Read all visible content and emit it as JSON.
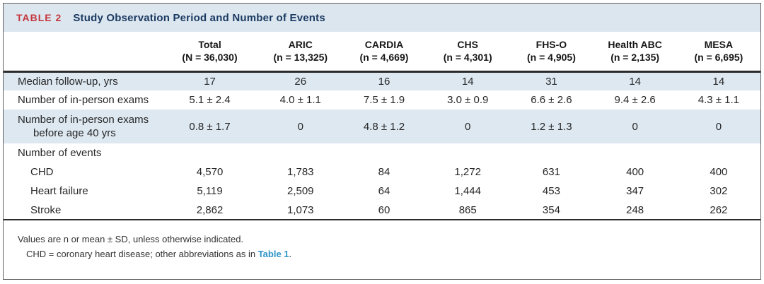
{
  "table": {
    "tag": "TABLE 2",
    "title": "Study Observation Period and Number of Events"
  },
  "columns": [
    {
      "name": "Total",
      "n": "(N = 36,030)"
    },
    {
      "name": "ARIC",
      "n": "(n = 13,325)"
    },
    {
      "name": "CARDIA",
      "n": "(n = 4,669)"
    },
    {
      "name": "CHS",
      "n": "(n = 4,301)"
    },
    {
      "name": "FHS-O",
      "n": "(n = 4,905)"
    },
    {
      "name": "Health ABC",
      "n": "(n = 2,135)"
    },
    {
      "name": "MESA",
      "n": "(n = 6,695)"
    }
  ],
  "rows": [
    {
      "label": "Median follow-up, yrs",
      "values": [
        "17",
        "26",
        "16",
        "14",
        "31",
        "14",
        "14"
      ]
    },
    {
      "label": "Number of in-person exams",
      "values": [
        "5.1 ± 2.4",
        "4.0 ± 1.1",
        "7.5 ± 1.9",
        "3.0 ± 0.9",
        "6.6 ± 2.6",
        "9.4 ± 2.6",
        "4.3 ± 1.1"
      ]
    },
    {
      "label": "Number of in-person exams",
      "label2": "before age 40 yrs",
      "values": [
        "0.8 ± 1.7",
        "0",
        "4.8 ± 1.2",
        "0",
        "1.2 ± 1.3",
        "0",
        "0"
      ]
    },
    {
      "label": "Number of events",
      "values": [
        "",
        "",
        "",
        "",
        "",
        "",
        ""
      ]
    },
    {
      "label": "CHD",
      "values": [
        "4,570",
        "1,783",
        "84",
        "1,272",
        "631",
        "400",
        "400"
      ]
    },
    {
      "label": "Heart failure",
      "values": [
        "5,119",
        "2,509",
        "64",
        "1,444",
        "453",
        "347",
        "302"
      ]
    },
    {
      "label": "Stroke",
      "values": [
        "2,862",
        "1,073",
        "60",
        "865",
        "354",
        "248",
        "262"
      ]
    }
  ],
  "footnotes": {
    "line1": "Values are n or mean ± SD, unless otherwise indicated.",
    "line2_text": "CHD = coronary heart disease; other abbreviations as in ",
    "line2_link": "Table 1",
    "line2_suffix": "."
  },
  "colors": {
    "tag_red": "#c5363e",
    "title_navy": "#1b3a61",
    "band_blue": "#dbe6ef",
    "stripe_blue": "#dde8f1",
    "link_blue": "#2e95c8"
  }
}
